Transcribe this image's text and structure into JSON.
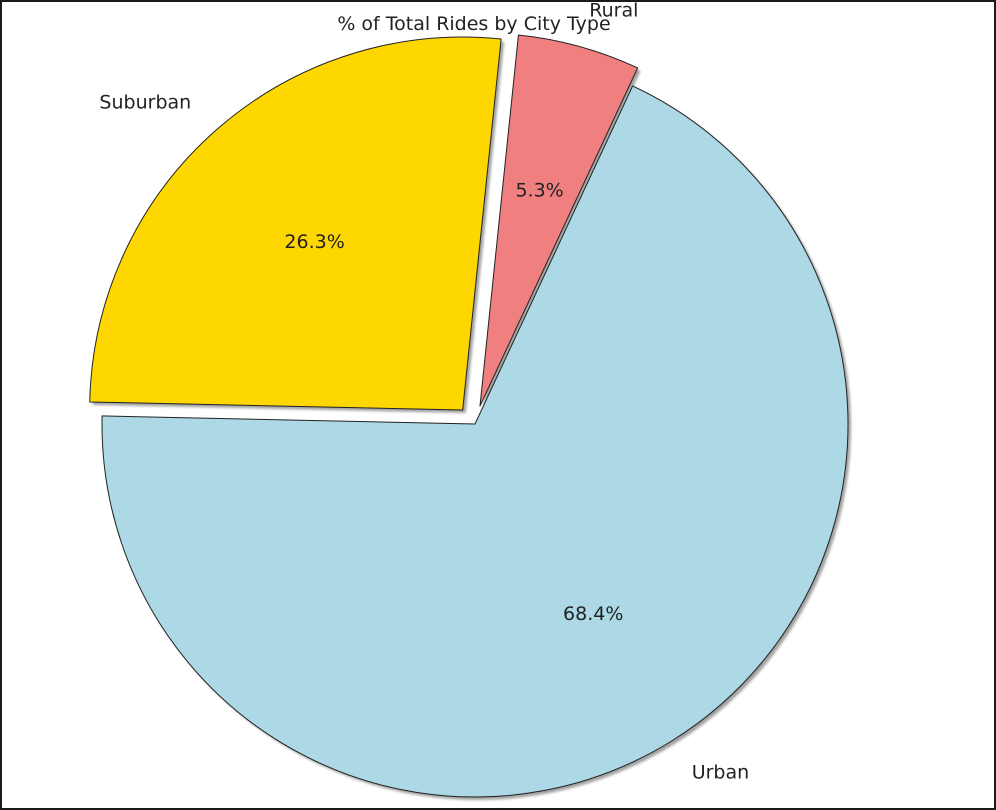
{
  "chart_data": {
    "type": "pie",
    "title": "% of Total Rides by City Type",
    "start_angle_deg": 65,
    "direction": "counterclockwise",
    "shadow": true,
    "slices": [
      {
        "name": "Rural",
        "value": 5.3,
        "pct_label": "5.3%",
        "color": "#F08080",
        "exploded": true
      },
      {
        "name": "Suburban",
        "value": 26.3,
        "pct_label": "26.3%",
        "color": "#FFD700",
        "exploded": true
      },
      {
        "name": "Urban",
        "value": 68.4,
        "pct_label": "68.4%",
        "color": "#ADD8E6",
        "exploded": false
      }
    ]
  }
}
